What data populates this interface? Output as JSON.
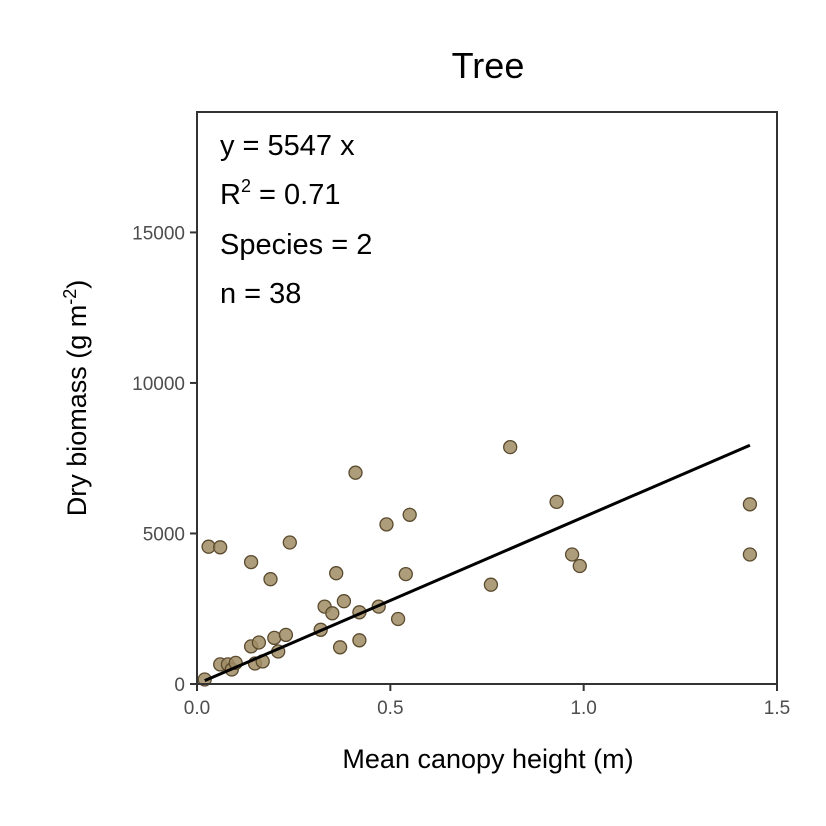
{
  "chart_data": {
    "type": "scatter",
    "title": "Tree",
    "xlabel": "Mean canopy height (m)",
    "ylabel": {
      "main": "Dry biomass (g m",
      "sup": "-2",
      "close": ")"
    },
    "xlim": [
      0,
      1.5
    ],
    "ylim": [
      0,
      19000
    ],
    "x_ticks": [
      0.0,
      0.5,
      1.0,
      1.5
    ],
    "x_tick_labels": [
      "0.0",
      "0.5",
      "1.0",
      "1.5"
    ],
    "y_ticks": [
      0,
      5000,
      10000,
      15000
    ],
    "y_tick_labels": [
      "0",
      "5000",
      "10000",
      "15000"
    ],
    "grid": false,
    "legend": "none",
    "annotations": {
      "equation": "y = 5547 x",
      "r2_prefix": "R",
      "r2_sup": "2",
      "r2_value": " = 0.71",
      "species": "Species = 2",
      "n": "n = 38"
    },
    "fit_line": {
      "slope": 5547,
      "x_range": [
        0.02,
        1.43
      ]
    },
    "series": [
      {
        "color": "#a08c64",
        "points": [
          [
            0.02,
            150
          ],
          [
            0.03,
            4560
          ],
          [
            0.06,
            4540
          ],
          [
            0.06,
            650
          ],
          [
            0.08,
            650
          ],
          [
            0.09,
            480
          ],
          [
            0.1,
            700
          ],
          [
            0.14,
            4050
          ],
          [
            0.14,
            1250
          ],
          [
            0.15,
            680
          ],
          [
            0.16,
            1380
          ],
          [
            0.17,
            750
          ],
          [
            0.19,
            3480
          ],
          [
            0.2,
            1530
          ],
          [
            0.21,
            1080
          ],
          [
            0.23,
            1630
          ],
          [
            0.24,
            4700
          ],
          [
            0.32,
            1800
          ],
          [
            0.33,
            2570
          ],
          [
            0.35,
            2350
          ],
          [
            0.36,
            3680
          ],
          [
            0.37,
            1220
          ],
          [
            0.38,
            2750
          ],
          [
            0.41,
            7020
          ],
          [
            0.42,
            2380
          ],
          [
            0.42,
            1450
          ],
          [
            0.47,
            2570
          ],
          [
            0.49,
            5300
          ],
          [
            0.52,
            2160
          ],
          [
            0.54,
            3650
          ],
          [
            0.55,
            5620
          ],
          [
            0.76,
            3300
          ],
          [
            0.81,
            7870
          ],
          [
            0.93,
            6050
          ],
          [
            0.97,
            4300
          ],
          [
            0.99,
            3920
          ],
          [
            1.43,
            5970
          ],
          [
            1.43,
            4300
          ]
        ]
      }
    ],
    "colors": {
      "point_fill": "#a08c64",
      "point_stroke": "#5a4a2e",
      "fit": "#000000",
      "frame": "#333333"
    }
  }
}
